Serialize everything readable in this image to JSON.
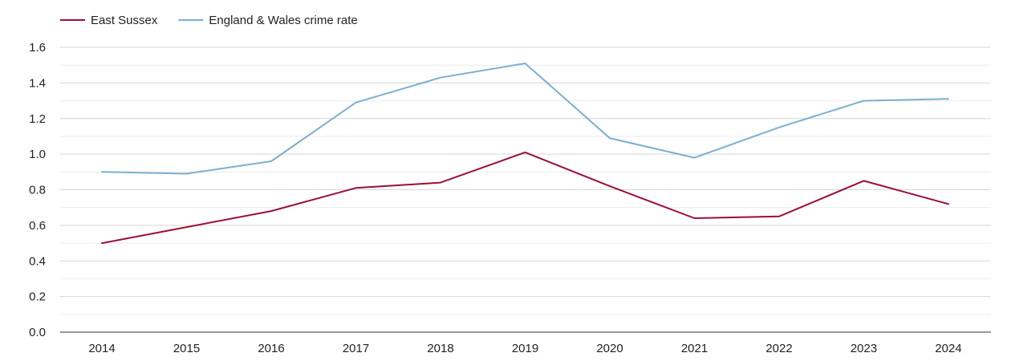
{
  "chart_data": {
    "type": "line",
    "title": "",
    "xlabel": "",
    "ylabel": "",
    "categories": [
      "2014",
      "2015",
      "2016",
      "2017",
      "2018",
      "2019",
      "2020",
      "2021",
      "2022",
      "2023",
      "2024"
    ],
    "ylim": [
      0,
      1.6
    ],
    "y_ticks": [
      "0.0",
      "0.2",
      "0.4",
      "0.6",
      "0.8",
      "1.0",
      "1.2",
      "1.4",
      "1.6"
    ],
    "grid": true,
    "legend_position": "top-left",
    "series": [
      {
        "name": "East Sussex",
        "color": "#9b0f35",
        "values": [
          0.5,
          0.59,
          0.68,
          0.81,
          0.84,
          1.01,
          0.82,
          0.64,
          0.65,
          0.85,
          0.72
        ]
      },
      {
        "name": "England & Wales crime rate",
        "color": "#7bafd0",
        "values": [
          0.9,
          0.89,
          0.96,
          1.29,
          1.43,
          1.51,
          1.09,
          0.98,
          1.15,
          1.3,
          1.31
        ]
      }
    ]
  }
}
